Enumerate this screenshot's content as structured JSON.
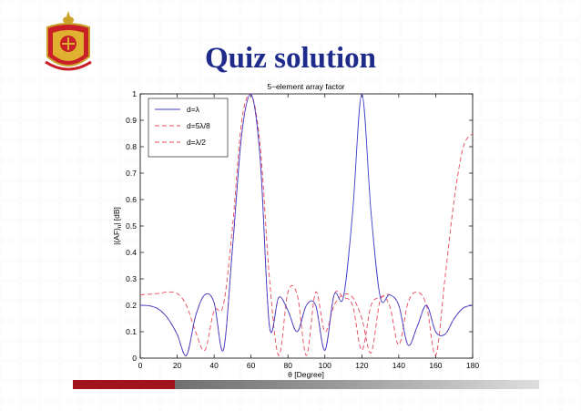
{
  "slide": {
    "title": "Quiz solution"
  },
  "colors": {
    "title": "#1f2b8a",
    "series_solid": "#3c3cc8",
    "series_dashed": "#e8475a",
    "footer_red": "#a2141d"
  },
  "chart_data": {
    "type": "line",
    "title": "5−element array factor",
    "xlabel": "θ [Degree]",
    "ylabel": "|(AF)",
    "ylabel_sub": "n",
    "ylabel_suffix": "| [dB]",
    "xlim": [
      0,
      180
    ],
    "ylim": [
      0,
      1
    ],
    "xticks": [
      0,
      20,
      40,
      60,
      80,
      100,
      120,
      140,
      160,
      180
    ],
    "yticks": [
      0,
      0.1,
      0.2,
      0.3,
      0.4,
      0.5,
      0.6,
      0.7,
      0.8,
      0.9,
      1
    ],
    "xtick_labels": [
      "0",
      "20",
      "40",
      "60",
      "80",
      "100",
      "120",
      "140",
      "160",
      "180"
    ],
    "ytick_labels": [
      "0",
      "0.1",
      "0.2",
      "0.3",
      "0.4",
      "0.5",
      "0.6",
      "0.7",
      "0.8",
      "0.9",
      "1"
    ],
    "grid": false,
    "legend_position": "top-left",
    "series": [
      {
        "name": "d=λ",
        "style": "solid",
        "color": "#3c3cc8",
        "x": [
          0,
          5,
          10,
          15,
          20,
          25,
          30,
          35,
          40,
          45,
          50,
          55,
          60,
          65,
          70,
          75,
          80,
          85,
          90,
          95,
          100,
          105,
          110,
          115,
          120,
          125,
          130,
          135,
          140,
          145,
          150,
          155,
          160,
          165,
          170,
          175,
          180
        ],
        "y": [
          0.2,
          0.198,
          0.185,
          0.15,
          0.09,
          0.01,
          0.16,
          0.24,
          0.21,
          0.03,
          0.42,
          0.85,
          1.0,
          0.75,
          0.12,
          0.23,
          0.18,
          0.1,
          0.2,
          0.2,
          0.03,
          0.24,
          0.23,
          0.55,
          1.0,
          0.55,
          0.23,
          0.24,
          0.2,
          0.05,
          0.12,
          0.2,
          0.1,
          0.09,
          0.15,
          0.19,
          0.2
        ]
      },
      {
        "name": "d=5λ/8",
        "style": "dashed",
        "color": "#e8475a",
        "x": [
          0,
          5,
          10,
          15,
          20,
          25,
          30,
          35,
          40,
          45,
          50,
          55,
          60,
          65,
          70,
          75,
          80,
          85,
          90,
          95,
          100,
          105,
          110,
          115,
          120,
          125,
          130,
          135,
          140,
          145,
          150,
          155,
          160,
          165,
          170,
          175,
          180
        ],
        "y": [
          0.24,
          0.242,
          0.245,
          0.25,
          0.245,
          0.2,
          0.1,
          0.03,
          0.18,
          0.2,
          0.5,
          0.9,
          1.0,
          0.8,
          0.3,
          0.01,
          0.25,
          0.24,
          0.01,
          0.25,
          0.1,
          0.2,
          0.24,
          0.23,
          0.15,
          0.02,
          0.22,
          0.2,
          0.05,
          0.21,
          0.25,
          0.2,
          0.01,
          0.3,
          0.6,
          0.8,
          0.85
        ]
      },
      {
        "name": "d=λ/2",
        "style": "dashed",
        "color": "#e8475a",
        "x": [
          0,
          5,
          10,
          15,
          20,
          25,
          30,
          35,
          40,
          45,
          50,
          55,
          60,
          65,
          70,
          75,
          80,
          85,
          90,
          95,
          100,
          105,
          110,
          115,
          120,
          125,
          130,
          135,
          140,
          145,
          150,
          155,
          160,
          165,
          170,
          175,
          180
        ],
        "y": [
          0.2,
          0.198,
          0.185,
          0.15,
          0.09,
          0.01,
          0.16,
          0.24,
          0.21,
          0.03,
          0.42,
          0.85,
          1.0,
          0.75,
          0.12,
          0.23,
          0.18,
          0.1,
          0.2,
          0.2,
          0.03,
          0.24,
          0.23,
          0.2,
          0.03,
          0.2,
          0.23,
          0.24,
          0.2,
          0.05,
          0.12,
          0.2,
          0.1,
          0.09,
          0.15,
          0.19,
          0.2
        ]
      }
    ]
  }
}
